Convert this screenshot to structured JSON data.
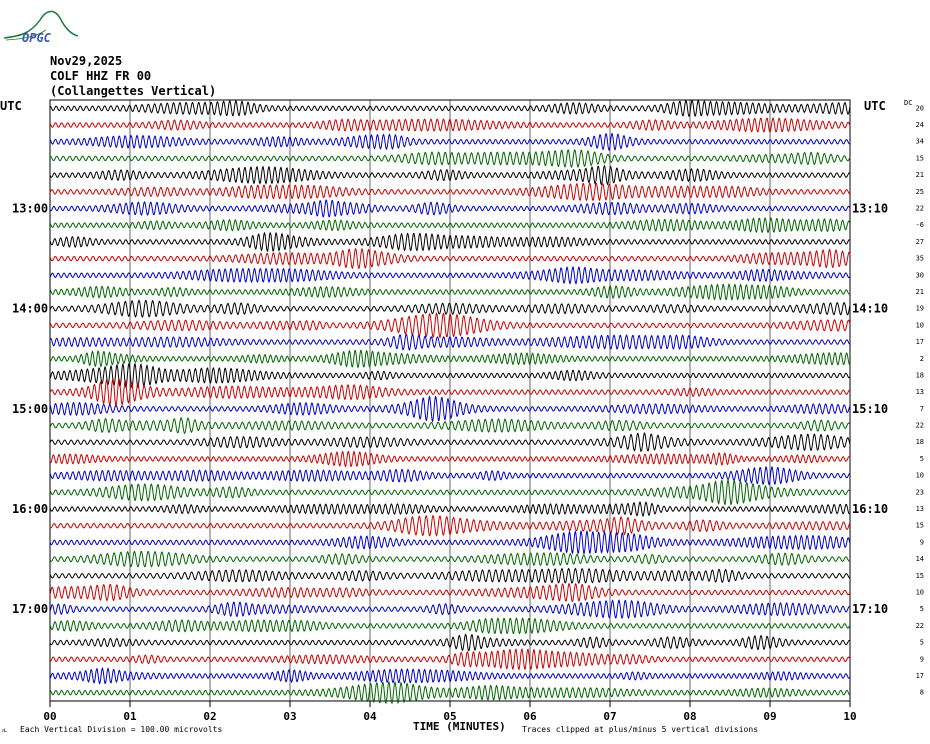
{
  "logo": {
    "text": "OPGC"
  },
  "header": {
    "date": "Nov29,2025",
    "station": "COLF HHZ FR 00",
    "location": "(Collangettes Vertical)"
  },
  "left_utc": "UTC",
  "right_utc": "UTC",
  "dc_label": "DC",
  "left_times": [
    "13:00",
    "14:00",
    "15:00",
    "16:00",
    "17:00"
  ],
  "right_times": [
    "13:10",
    "14:10",
    "15:10",
    "16:10",
    "17:10"
  ],
  "dc_values": [
    "20",
    "24",
    "34",
    "15",
    "21",
    "25",
    "22",
    "-6",
    "27",
    "35",
    "30",
    "21",
    "19",
    "10",
    "17",
    "2",
    "18",
    "13",
    "7",
    "22",
    "18",
    "5",
    "10",
    "23",
    "13",
    "15",
    "9",
    "14",
    "15",
    "10",
    "5",
    "22",
    "5",
    "9",
    "17",
    "8"
  ],
  "footer": {
    "left_mark": "ᴊʟ",
    "division": "Each Vertical Division =  100.00 microvolts",
    "clip": "Traces clipped at plus/minus 5 vertical divisions",
    "xlabel": "TIME (MINUTES)"
  },
  "trace_colors": [
    "#000000",
    "#cc0000",
    "#0000cc",
    "#006600"
  ],
  "chart_data": {
    "type": "line",
    "title": "COLF HHZ FR 00 (Collangettes Vertical)",
    "xlabel": "TIME (MINUTES)",
    "ylabel": "UTC",
    "xlim": [
      0,
      10
    ],
    "x_ticks": [
      "00",
      "01",
      "02",
      "03",
      "04",
      "05",
      "06",
      "07",
      "08",
      "09",
      "10"
    ],
    "trace_count": 36,
    "minutes_per_trace": 10,
    "grid": true
  }
}
